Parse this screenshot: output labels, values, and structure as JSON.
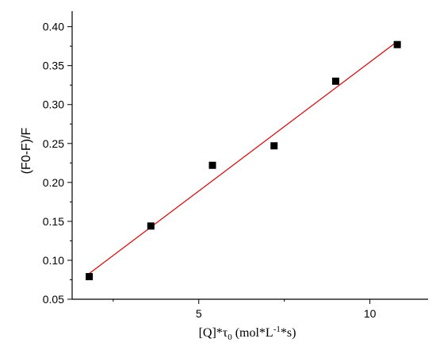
{
  "chart_data": {
    "type": "scatter",
    "title": "",
    "xlabel": {
      "parts": [
        "[Q]*τ",
        "0",
        " (mol*L",
        "-1",
        "*s)"
      ]
    },
    "ylabel": "(F0-F)/F",
    "xlim": [
      1.3,
      11.7
    ],
    "ylim": [
      0.05,
      0.42
    ],
    "x_ticks": [
      5,
      10
    ],
    "x_tick_labels": [
      "5",
      "10"
    ],
    "y_ticks": [
      0.05,
      0.1,
      0.15,
      0.2,
      0.25,
      0.3,
      0.35,
      0.4
    ],
    "y_tick_labels": [
      "0.05",
      "0.10",
      "0.15",
      "0.20",
      "0.25",
      "0.30",
      "0.35",
      "0.40"
    ],
    "grid": false,
    "series": [
      {
        "marker": "square",
        "color": "#000000",
        "x": [
          1.8,
          3.6,
          5.4,
          7.2,
          9.0,
          10.8
        ],
        "y": [
          0.079,
          0.144,
          0.222,
          0.247,
          0.33,
          0.377
        ]
      }
    ],
    "fit_line": {
      "color": "#e00000",
      "x": [
        1.8,
        10.8
      ],
      "y": [
        0.083,
        0.381
      ]
    }
  }
}
